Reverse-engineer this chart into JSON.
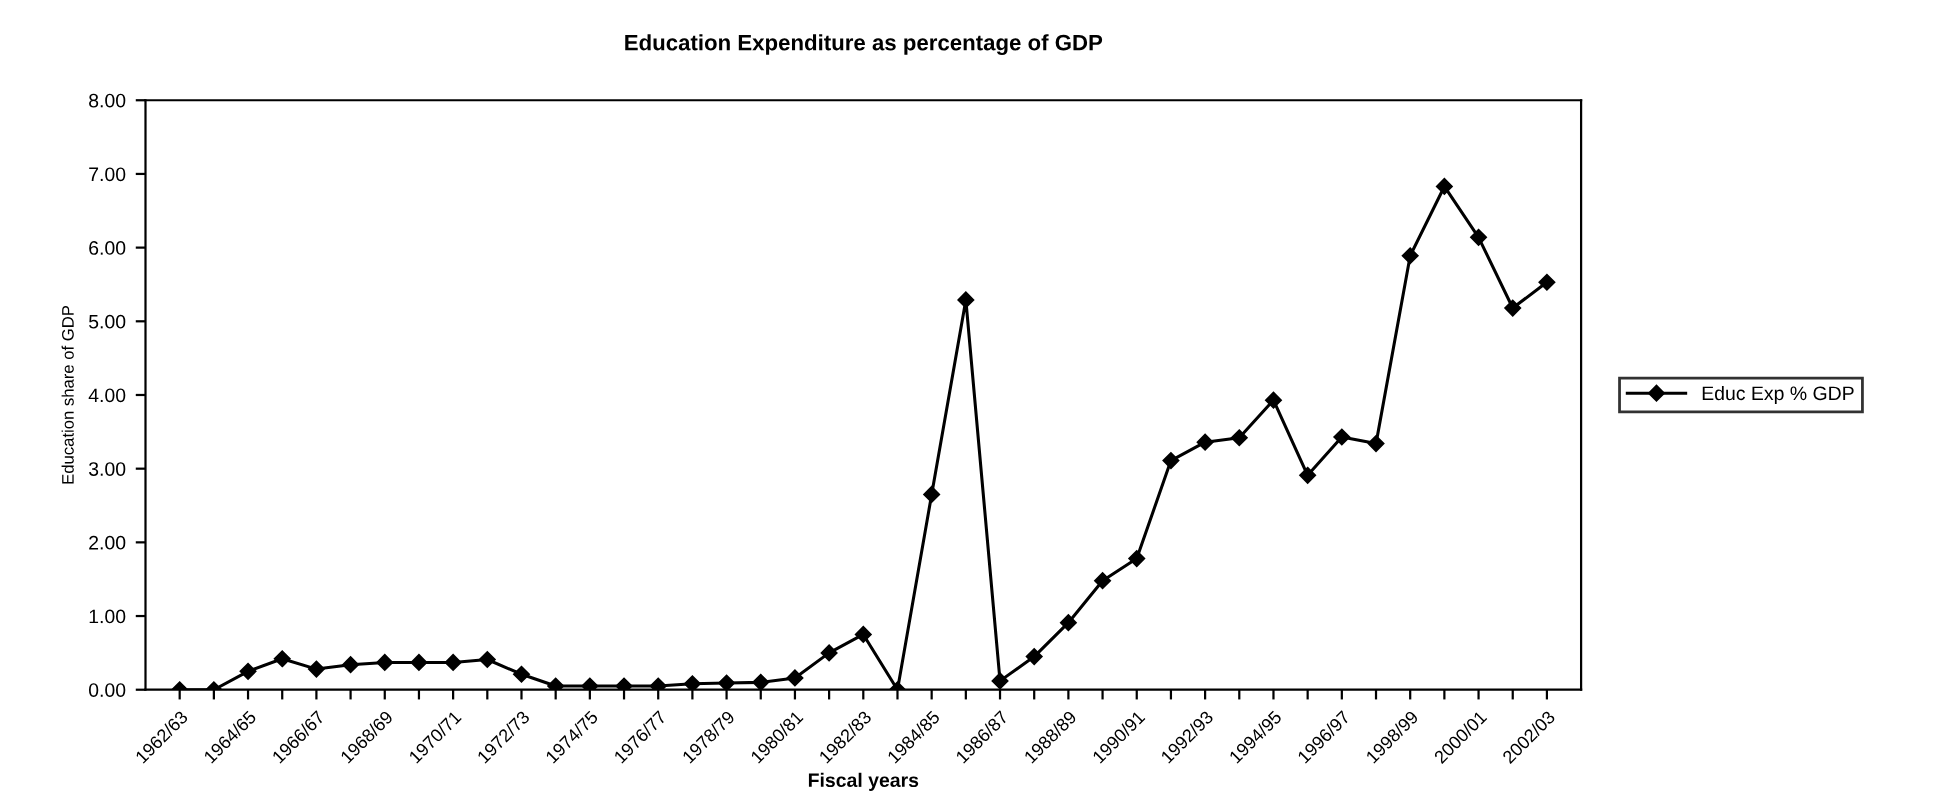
{
  "chart_data": {
    "type": "line",
    "title": "Education Expenditure as percentage of GDP",
    "xlabel": "Fiscal years",
    "ylabel": "Education share of GDP",
    "categories": [
      "1962/63",
      null,
      "1964/65",
      null,
      "1966/67",
      null,
      "1968/69",
      null,
      "1970/71",
      null,
      "1972/73",
      null,
      "1974/75",
      null,
      "1976/77",
      null,
      "1978/79",
      null,
      "1980/81",
      null,
      "1982/83",
      null,
      "1984/85",
      null,
      "1986/87",
      null,
      "1988/89",
      null,
      "1990/91",
      null,
      "1992/93",
      null,
      "1994/95",
      null,
      "1996/97",
      null,
      "1998/99",
      null,
      "2000/01",
      null,
      "2002/03"
    ],
    "series": [
      {
        "name": "Educ Exp % GDP",
        "color": "#000000",
        "values": [
          0.0,
          0.0,
          0.25,
          0.42,
          0.28,
          0.34,
          0.37,
          0.37,
          0.37,
          0.41,
          0.21,
          0.05,
          0.05,
          0.05,
          0.05,
          0.08,
          0.09,
          0.1,
          0.16,
          0.5,
          0.75,
          0.0,
          2.65,
          5.29,
          0.12,
          0.45,
          0.91,
          1.48,
          1.78,
          3.11,
          3.36,
          3.42,
          3.93,
          2.91,
          3.43,
          3.34,
          5.89,
          6.83,
          6.14,
          5.18,
          5.53
        ]
      }
    ],
    "ylim": [
      0,
      8
    ],
    "yticks": [
      {
        "value": 0,
        "label": "0.00"
      },
      {
        "value": 1,
        "label": "1.00"
      },
      {
        "value": 2,
        "label": "2.00"
      },
      {
        "value": 3,
        "label": "3.00"
      },
      {
        "value": 4,
        "label": "4.00"
      },
      {
        "value": 5,
        "label": "5.00"
      },
      {
        "value": 6,
        "label": "6.00"
      },
      {
        "value": 7,
        "label": "7.00"
      },
      {
        "value": 8,
        "label": "8.00"
      }
    ],
    "marker": "diamond",
    "line_style": "solid",
    "legend": "right",
    "grid": false
  }
}
